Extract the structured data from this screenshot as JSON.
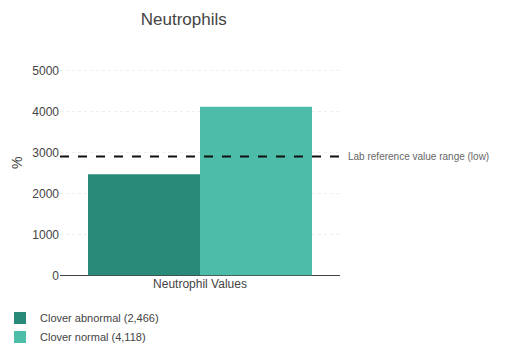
{
  "chart_data": {
    "type": "bar",
    "title": "Neutrophils",
    "categories": [
      "Neutrophil Values"
    ],
    "series": [
      {
        "name": "Clover abnormal (2,466)",
        "color": "#2a8a7a",
        "values": [
          2466
        ]
      },
      {
        "name": "Clover normal (4,118)",
        "color": "#4dbdaa",
        "values": [
          4118
        ]
      }
    ],
    "ylabel": "%",
    "ylim": [
      0,
      5500
    ],
    "yticks": [
      0,
      1000,
      2000,
      3000,
      4000,
      5000
    ],
    "reference_line": {
      "value": 2900,
      "label": "Lab reference value range (low)",
      "color": "#111111"
    },
    "grid": true,
    "legend": "lower left"
  }
}
